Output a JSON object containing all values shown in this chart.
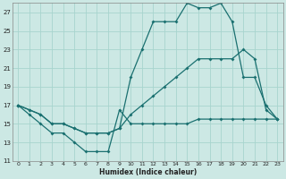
{
  "xlabel": "Humidex (Indice chaleur)",
  "background_color": "#cce8e4",
  "grid_color": "#a8d4ce",
  "line_color": "#1a7070",
  "xlim": [
    -0.5,
    23.5
  ],
  "ylim": [
    11,
    28
  ],
  "yticks": [
    11,
    13,
    15,
    17,
    19,
    21,
    23,
    25,
    27
  ],
  "xticks": [
    0,
    1,
    2,
    3,
    4,
    5,
    6,
    7,
    8,
    9,
    10,
    11,
    12,
    13,
    14,
    15,
    16,
    17,
    18,
    19,
    20,
    21,
    22,
    23
  ],
  "line1_x": [
    0,
    1,
    2,
    3,
    4,
    5,
    6,
    7,
    8,
    9,
    10,
    11,
    12,
    13,
    14,
    15,
    16,
    17,
    18,
    19,
    20,
    21,
    22,
    23
  ],
  "line1_y": [
    17,
    16,
    15,
    14,
    14,
    13,
    12,
    12,
    12,
    16.5,
    15,
    15,
    15,
    15,
    15,
    15,
    15.5,
    15.5,
    15.5,
    15.5,
    15.5,
    15.5,
    15.5,
    15.5
  ],
  "line2_x": [
    0,
    1,
    2,
    3,
    4,
    5,
    6,
    7,
    8,
    9,
    10,
    11,
    12,
    13,
    14,
    15,
    16,
    17,
    18,
    19,
    20,
    21,
    22,
    23
  ],
  "line2_y": [
    17,
    16.5,
    16,
    15,
    15,
    14.5,
    14,
    14,
    14,
    14.5,
    16,
    17,
    18,
    19,
    20,
    21,
    22,
    22,
    22,
    22,
    23,
    22,
    16.5,
    15.5
  ],
  "line3_x": [
    0,
    1,
    2,
    3,
    4,
    5,
    6,
    7,
    8,
    9,
    10,
    11,
    12,
    13,
    14,
    15,
    16,
    17,
    18,
    19,
    20,
    21,
    22,
    23
  ],
  "line3_y": [
    17,
    16.5,
    16,
    15,
    15,
    14.5,
    14,
    14,
    14,
    14.5,
    20,
    23,
    26,
    26,
    26,
    28,
    27.5,
    27.5,
    28,
    26,
    20,
    20,
    17,
    15.5
  ]
}
